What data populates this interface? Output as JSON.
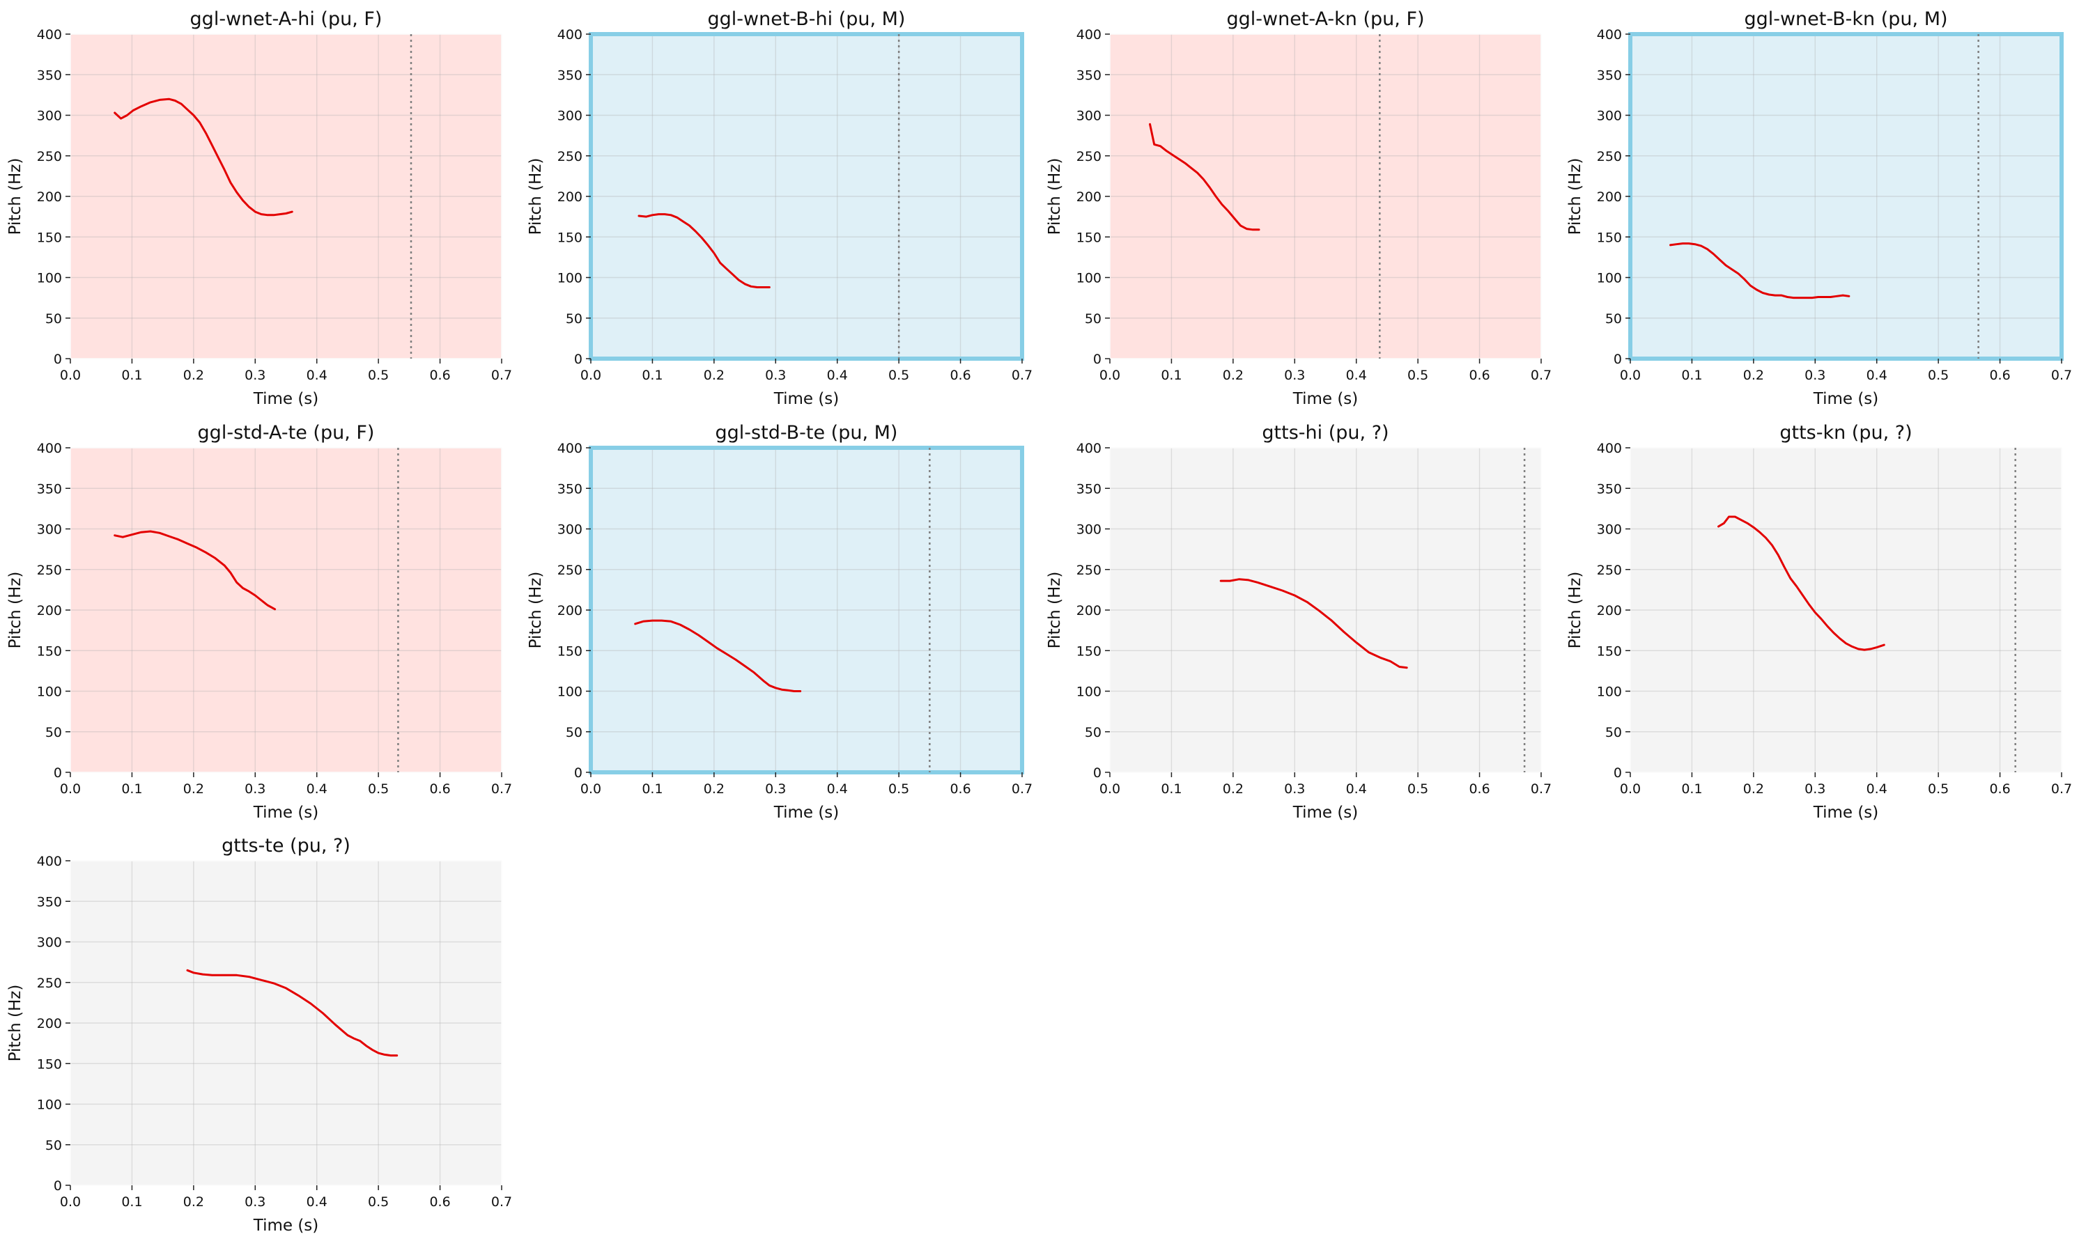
{
  "colors": {
    "female_bg": "#ffe2e0",
    "male_bg": "#dff0f7",
    "unknown_bg": "#f4f4f4",
    "male_border": "#87cee6",
    "pitch_line": "#e30000",
    "end_marker": "#7f7f7f"
  },
  "chart_data": [
    {
      "type": "line",
      "title": "ggl-wnet-A-hi (pu, F)",
      "gender": "F",
      "xlabel": "Time (s)",
      "ylabel": "Pitch (Hz)",
      "xlim": [
        0,
        0.7
      ],
      "ylim": [
        0,
        400
      ],
      "xticks": [
        "0.0",
        "0.1",
        "0.2",
        "0.3",
        "0.4",
        "0.5",
        "0.6",
        "0.7"
      ],
      "yticks": [
        "0",
        "50",
        "100",
        "150",
        "200",
        "250",
        "300",
        "350",
        "400"
      ],
      "grid": true,
      "end_time": 0.553,
      "series": [
        {
          "x": [
            0.072,
            0.082,
            0.092,
            0.102,
            0.115,
            0.13,
            0.145,
            0.16,
            0.17,
            0.18,
            0.19,
            0.2,
            0.21,
            0.22,
            0.23,
            0.24,
            0.25,
            0.26,
            0.27,
            0.28,
            0.29,
            0.3,
            0.31,
            0.32,
            0.33,
            0.34,
            0.35,
            0.36
          ],
          "y": [
            303,
            296,
            300,
            306,
            311,
            316,
            319,
            320,
            318,
            314,
            307,
            300,
            291,
            278,
            263,
            248,
            233,
            217,
            205,
            195,
            187,
            181,
            178,
            177,
            177,
            178,
            179,
            181
          ]
        }
      ]
    },
    {
      "type": "line",
      "title": "ggl-wnet-B-hi (pu, M)",
      "gender": "M",
      "xlabel": "Time (s)",
      "ylabel": "Pitch (Hz)",
      "xlim": [
        0,
        0.7
      ],
      "ylim": [
        0,
        400
      ],
      "xticks": [
        "0.0",
        "0.1",
        "0.2",
        "0.3",
        "0.4",
        "0.5",
        "0.6",
        "0.7"
      ],
      "yticks": [
        "0",
        "50",
        "100",
        "150",
        "200",
        "250",
        "300",
        "350",
        "400"
      ],
      "grid": true,
      "end_time": 0.5,
      "series": [
        {
          "x": [
            0.078,
            0.09,
            0.1,
            0.11,
            0.12,
            0.13,
            0.14,
            0.15,
            0.16,
            0.17,
            0.18,
            0.19,
            0.2,
            0.21,
            0.22,
            0.23,
            0.24,
            0.25,
            0.26,
            0.27,
            0.28,
            0.29
          ],
          "y": [
            176,
            175,
            177,
            178,
            178,
            177,
            174,
            169,
            164,
            157,
            149,
            140,
            130,
            118,
            111,
            104,
            97,
            92,
            89,
            88,
            88,
            88
          ]
        }
      ]
    },
    {
      "type": "line",
      "title": "ggl-wnet-A-kn (pu, F)",
      "gender": "F",
      "xlabel": "Time (s)",
      "ylabel": "Pitch (Hz)",
      "xlim": [
        0,
        0.7
      ],
      "ylim": [
        0,
        400
      ],
      "xticks": [
        "0.0",
        "0.1",
        "0.2",
        "0.3",
        "0.4",
        "0.5",
        "0.6",
        "0.7"
      ],
      "yticks": [
        "0",
        "50",
        "100",
        "150",
        "200",
        "250",
        "300",
        "350",
        "400"
      ],
      "grid": true,
      "end_time": 0.438,
      "series": [
        {
          "x": [
            0.065,
            0.072,
            0.082,
            0.092,
            0.102,
            0.112,
            0.122,
            0.132,
            0.142,
            0.152,
            0.162,
            0.172,
            0.182,
            0.192,
            0.202,
            0.212,
            0.222,
            0.232,
            0.242
          ],
          "y": [
            289,
            264,
            262,
            256,
            251,
            246,
            241,
            235,
            229,
            221,
            211,
            200,
            190,
            182,
            173,
            164,
            160,
            159,
            159
          ]
        }
      ]
    },
    {
      "type": "line",
      "title": "ggl-wnet-B-kn (pu, M)",
      "gender": "M",
      "xlabel": "Time (s)",
      "ylabel": "Pitch (Hz)",
      "xlim": [
        0,
        0.7
      ],
      "ylim": [
        0,
        400
      ],
      "xticks": [
        "0.0",
        "0.1",
        "0.2",
        "0.3",
        "0.4",
        "0.5",
        "0.6",
        "0.7"
      ],
      "yticks": [
        "0",
        "50",
        "100",
        "150",
        "200",
        "250",
        "300",
        "350",
        "400"
      ],
      "grid": true,
      "end_time": 0.565,
      "series": [
        {
          "x": [
            0.065,
            0.075,
            0.085,
            0.095,
            0.105,
            0.115,
            0.125,
            0.135,
            0.145,
            0.155,
            0.165,
            0.175,
            0.185,
            0.195,
            0.205,
            0.215,
            0.225,
            0.235,
            0.245,
            0.255,
            0.265,
            0.275,
            0.285,
            0.295,
            0.305,
            0.315,
            0.325,
            0.335,
            0.345,
            0.355
          ],
          "y": [
            140,
            141,
            142,
            142,
            141,
            139,
            135,
            129,
            122,
            115,
            110,
            105,
            98,
            90,
            85,
            81,
            79,
            78,
            78,
            76,
            75,
            75,
            75,
            75,
            76,
            76,
            76,
            77,
            78,
            77
          ]
        }
      ]
    },
    {
      "type": "line",
      "title": "ggl-std-A-te (pu, F)",
      "gender": "F",
      "xlabel": "Time (s)",
      "ylabel": "Pitch (Hz)",
      "xlim": [
        0,
        0.7
      ],
      "ylim": [
        0,
        400
      ],
      "xticks": [
        "0.0",
        "0.1",
        "0.2",
        "0.3",
        "0.4",
        "0.5",
        "0.6",
        "0.7"
      ],
      "yticks": [
        "0",
        "50",
        "100",
        "150",
        "200",
        "250",
        "300",
        "350",
        "400"
      ],
      "grid": true,
      "end_time": 0.532,
      "series": [
        {
          "x": [
            0.072,
            0.085,
            0.1,
            0.115,
            0.13,
            0.145,
            0.16,
            0.175,
            0.19,
            0.205,
            0.22,
            0.235,
            0.25,
            0.26,
            0.27,
            0.28,
            0.29,
            0.3,
            0.31,
            0.32,
            0.332
          ],
          "y": [
            292,
            290,
            293,
            296,
            297,
            295,
            291,
            287,
            282,
            277,
            271,
            264,
            255,
            246,
            234,
            227,
            223,
            218,
            212,
            206,
            201
          ]
        }
      ]
    },
    {
      "type": "line",
      "title": "ggl-std-B-te (pu, M)",
      "gender": "M",
      "xlabel": "Time (s)",
      "ylabel": "Pitch (Hz)",
      "xlim": [
        0,
        0.7
      ],
      "ylim": [
        0,
        400
      ],
      "xticks": [
        "0.0",
        "0.1",
        "0.2",
        "0.3",
        "0.4",
        "0.5",
        "0.6",
        "0.7"
      ],
      "yticks": [
        "0",
        "50",
        "100",
        "150",
        "200",
        "250",
        "300",
        "350",
        "400"
      ],
      "grid": true,
      "end_time": 0.55,
      "series": [
        {
          "x": [
            0.072,
            0.085,
            0.1,
            0.115,
            0.13,
            0.145,
            0.16,
            0.175,
            0.19,
            0.205,
            0.22,
            0.235,
            0.25,
            0.265,
            0.28,
            0.29,
            0.3,
            0.31,
            0.32,
            0.33,
            0.34
          ],
          "y": [
            183,
            186,
            187,
            187,
            186,
            182,
            176,
            169,
            161,
            153,
            146,
            139,
            131,
            123,
            113,
            107,
            104,
            102,
            101,
            100,
            100
          ]
        }
      ]
    },
    {
      "type": "line",
      "title": "gtts-hi (pu, ?)",
      "gender": "?",
      "xlabel": "Time (s)",
      "ylabel": "Pitch (Hz)",
      "xlim": [
        0,
        0.7
      ],
      "ylim": [
        0,
        400
      ],
      "xticks": [
        "0.0",
        "0.1",
        "0.2",
        "0.3",
        "0.4",
        "0.5",
        "0.6",
        "0.7"
      ],
      "yticks": [
        "0",
        "50",
        "100",
        "150",
        "200",
        "250",
        "300",
        "350",
        "400"
      ],
      "grid": true,
      "end_time": 0.673,
      "series": [
        {
          "x": [
            0.18,
            0.195,
            0.21,
            0.225,
            0.24,
            0.26,
            0.28,
            0.3,
            0.32,
            0.34,
            0.36,
            0.38,
            0.4,
            0.42,
            0.44,
            0.455,
            0.47,
            0.482
          ],
          "y": [
            236,
            236,
            238,
            237,
            234,
            229,
            224,
            218,
            210,
            199,
            187,
            173,
            160,
            148,
            141,
            137,
            130,
            129
          ]
        }
      ]
    },
    {
      "type": "line",
      "title": "gtts-kn (pu, ?)",
      "gender": "?",
      "xlabel": "Time (s)",
      "ylabel": "Pitch (Hz)",
      "xlim": [
        0,
        0.7
      ],
      "ylim": [
        0,
        400
      ],
      "xticks": [
        "0.0",
        "0.1",
        "0.2",
        "0.3",
        "0.4",
        "0.5",
        "0.6",
        "0.7"
      ],
      "yticks": [
        "0",
        "50",
        "100",
        "150",
        "200",
        "250",
        "300",
        "350",
        "400"
      ],
      "grid": true,
      "end_time": 0.625,
      "series": [
        {
          "x": [
            0.143,
            0.152,
            0.16,
            0.17,
            0.18,
            0.19,
            0.2,
            0.21,
            0.22,
            0.23,
            0.24,
            0.25,
            0.26,
            0.27,
            0.28,
            0.29,
            0.3,
            0.31,
            0.32,
            0.33,
            0.34,
            0.35,
            0.36,
            0.37,
            0.38,
            0.39,
            0.4,
            0.412
          ],
          "y": [
            303,
            307,
            315,
            315,
            311,
            307,
            302,
            296,
            289,
            280,
            268,
            253,
            239,
            229,
            218,
            207,
            197,
            189,
            180,
            172,
            165,
            159,
            155,
            152,
            151,
            152,
            154,
            157
          ]
        }
      ]
    },
    {
      "type": "line",
      "title": "gtts-te (pu, ?)",
      "gender": "?",
      "xlabel": "Time (s)",
      "ylabel": "Pitch (Hz)",
      "xlim": [
        0,
        0.7
      ],
      "ylim": [
        0,
        400
      ],
      "xticks": [
        "0.0",
        "0.1",
        "0.2",
        "0.3",
        "0.4",
        "0.5",
        "0.6",
        "0.7"
      ],
      "yticks": [
        "0",
        "50",
        "100",
        "150",
        "200",
        "250",
        "300",
        "350",
        "400"
      ],
      "grid": true,
      "end_time": null,
      "series": [
        {
          "x": [
            0.19,
            0.2,
            0.215,
            0.23,
            0.25,
            0.27,
            0.29,
            0.31,
            0.33,
            0.35,
            0.37,
            0.39,
            0.41,
            0.43,
            0.45,
            0.46,
            0.47,
            0.48,
            0.49,
            0.5,
            0.51,
            0.52,
            0.53
          ],
          "y": [
            265,
            262,
            260,
            259,
            259,
            259,
            257,
            253,
            249,
            243,
            234,
            224,
            212,
            198,
            185,
            181,
            178,
            172,
            167,
            163,
            161,
            160,
            160
          ]
        }
      ]
    }
  ]
}
